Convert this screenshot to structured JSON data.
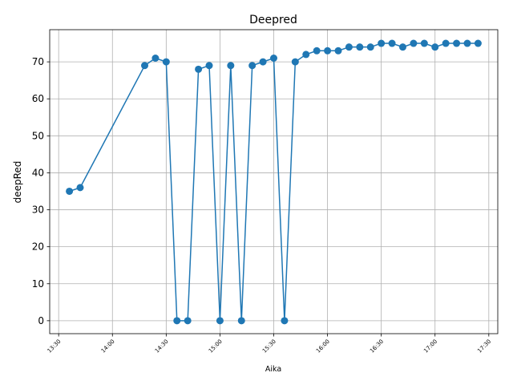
{
  "chart_data": {
    "type": "line",
    "title": "Deepred",
    "xlabel": "Aika",
    "ylabel": "deepRed",
    "x_unit": "time (HH:MM)",
    "xlim": [
      "13:25",
      "17:35"
    ],
    "ylim": [
      -3.5,
      78.7
    ],
    "grid": true,
    "x_ticks": [
      "13:30",
      "14:00",
      "14:30",
      "15:00",
      "15:30",
      "16:00",
      "16:30",
      "17:00",
      "17:30"
    ],
    "y_ticks": [
      0,
      10,
      20,
      30,
      40,
      50,
      60,
      70
    ],
    "series": [
      {
        "color": "#1f77b4",
        "marker": "circle",
        "points": [
          {
            "x": "13:36",
            "y": 35
          },
          {
            "x": "13:42",
            "y": 36
          },
          {
            "x": "14:18",
            "y": 69
          },
          {
            "x": "14:24",
            "y": 71
          },
          {
            "x": "14:30",
            "y": 70
          },
          {
            "x": "14:36",
            "y": 0
          },
          {
            "x": "14:42",
            "y": 0
          },
          {
            "x": "14:48",
            "y": 68
          },
          {
            "x": "14:54",
            "y": 69
          },
          {
            "x": "15:00",
            "y": 0
          },
          {
            "x": "15:06",
            "y": 69
          },
          {
            "x": "15:12",
            "y": 0
          },
          {
            "x": "15:18",
            "y": 69
          },
          {
            "x": "15:24",
            "y": 70
          },
          {
            "x": "15:30",
            "y": 71
          },
          {
            "x": "15:36",
            "y": 0
          },
          {
            "x": "15:42",
            "y": 70
          },
          {
            "x": "15:48",
            "y": 72
          },
          {
            "x": "15:54",
            "y": 73
          },
          {
            "x": "16:00",
            "y": 73
          },
          {
            "x": "16:06",
            "y": 73
          },
          {
            "x": "16:12",
            "y": 74
          },
          {
            "x": "16:18",
            "y": 74
          },
          {
            "x": "16:24",
            "y": 74
          },
          {
            "x": "16:30",
            "y": 75
          },
          {
            "x": "16:36",
            "y": 75
          },
          {
            "x": "16:42",
            "y": 74
          },
          {
            "x": "16:48",
            "y": 75
          },
          {
            "x": "16:54",
            "y": 75
          },
          {
            "x": "17:00",
            "y": 74
          },
          {
            "x": "17:06",
            "y": 75
          },
          {
            "x": "17:12",
            "y": 75
          },
          {
            "x": "17:18",
            "y": 75
          },
          {
            "x": "17:24",
            "y": 75
          }
        ]
      }
    ]
  }
}
